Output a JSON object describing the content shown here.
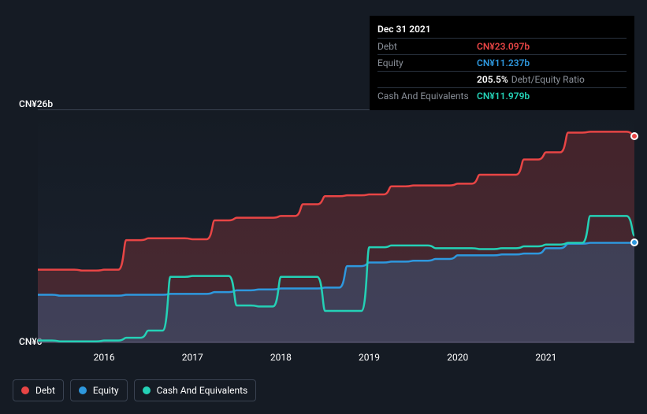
{
  "tooltip": {
    "date": "Dec 31 2021",
    "rows": {
      "debt": {
        "label": "Debt",
        "value": "CN¥23.097b"
      },
      "equity": {
        "label": "Equity",
        "value": "CN¥11.237b"
      },
      "ratio": {
        "value": "205.5%",
        "label": "Debt/Equity Ratio"
      },
      "cash": {
        "label": "Cash And Equivalents",
        "value": "CN¥11.979b"
      }
    }
  },
  "chart": {
    "type": "area",
    "background_color": "#151b24",
    "grid_color": "#3a4352",
    "ylabel_top": "CN¥26b",
    "ylabel_bottom": "CN¥0",
    "ylim": [
      0,
      26
    ],
    "xlim": [
      2015.25,
      2022.0
    ],
    "xticks": [
      2016,
      2017,
      2018,
      2019,
      2020,
      2021
    ],
    "xtick_labels": [
      "2016",
      "2017",
      "2018",
      "2019",
      "2020",
      "2021"
    ],
    "label_fontsize": 12,
    "line_width": 2.5,
    "series": {
      "debt": {
        "label": "Debt",
        "color": "#e84545",
        "fill_opacity": 0.22,
        "data": [
          [
            2015.25,
            8.2
          ],
          [
            2015.5,
            8.2
          ],
          [
            2015.75,
            8.1
          ],
          [
            2016.0,
            8.2
          ],
          [
            2016.25,
            11.5
          ],
          [
            2016.5,
            11.7
          ],
          [
            2016.75,
            11.7
          ],
          [
            2017.0,
            11.6
          ],
          [
            2017.25,
            13.7
          ],
          [
            2017.5,
            14.0
          ],
          [
            2017.75,
            14.0
          ],
          [
            2018.0,
            14.2
          ],
          [
            2018.25,
            15.5
          ],
          [
            2018.5,
            16.4
          ],
          [
            2018.75,
            16.5
          ],
          [
            2019.0,
            16.6
          ],
          [
            2019.25,
            17.5
          ],
          [
            2019.5,
            17.6
          ],
          [
            2019.75,
            17.6
          ],
          [
            2020.0,
            17.8
          ],
          [
            2020.25,
            18.8
          ],
          [
            2020.5,
            18.8
          ],
          [
            2020.75,
            20.5
          ],
          [
            2021.0,
            21.3
          ],
          [
            2021.25,
            23.5
          ],
          [
            2021.5,
            23.6
          ],
          [
            2021.75,
            23.6
          ],
          [
            2022.0,
            23.1
          ]
        ]
      },
      "equity": {
        "label": "Equity",
        "color": "#2e98de",
        "fill_opacity": 0.22,
        "data": [
          [
            2015.25,
            5.4
          ],
          [
            2015.5,
            5.3
          ],
          [
            2015.75,
            5.3
          ],
          [
            2016.0,
            5.3
          ],
          [
            2016.25,
            5.4
          ],
          [
            2016.5,
            5.4
          ],
          [
            2016.75,
            5.5
          ],
          [
            2017.0,
            5.5
          ],
          [
            2017.25,
            5.7
          ],
          [
            2017.5,
            5.9
          ],
          [
            2017.75,
            6.0
          ],
          [
            2018.0,
            6.1
          ],
          [
            2018.25,
            6.1
          ],
          [
            2018.5,
            6.2
          ],
          [
            2018.75,
            8.6
          ],
          [
            2019.0,
            9.0
          ],
          [
            2019.25,
            9.1
          ],
          [
            2019.5,
            9.2
          ],
          [
            2019.75,
            9.4
          ],
          [
            2020.0,
            9.8
          ],
          [
            2020.25,
            9.8
          ],
          [
            2020.5,
            9.9
          ],
          [
            2020.75,
            10.0
          ],
          [
            2021.0,
            10.6
          ],
          [
            2021.25,
            11.1
          ],
          [
            2021.5,
            11.2
          ],
          [
            2021.75,
            11.2
          ],
          [
            2022.0,
            11.2
          ]
        ]
      },
      "cash": {
        "label": "Cash And Equivalents",
        "color": "#24d1b6",
        "fill_opacity": 0.0,
        "data": [
          [
            2015.25,
            0.3
          ],
          [
            2015.5,
            0.2
          ],
          [
            2015.75,
            0.2
          ],
          [
            2016.0,
            0.3
          ],
          [
            2016.25,
            0.6
          ],
          [
            2016.5,
            1.4
          ],
          [
            2016.75,
            7.4
          ],
          [
            2017.0,
            7.5
          ],
          [
            2017.25,
            7.5
          ],
          [
            2017.5,
            4.2
          ],
          [
            2017.75,
            4.1
          ],
          [
            2018.0,
            7.4
          ],
          [
            2018.25,
            7.4
          ],
          [
            2018.5,
            3.6
          ],
          [
            2018.75,
            3.6
          ],
          [
            2019.0,
            10.7
          ],
          [
            2019.25,
            10.9
          ],
          [
            2019.5,
            10.9
          ],
          [
            2019.75,
            10.6
          ],
          [
            2020.0,
            10.6
          ],
          [
            2020.25,
            10.5
          ],
          [
            2020.5,
            10.6
          ],
          [
            2020.75,
            10.8
          ],
          [
            2021.0,
            11.0
          ],
          [
            2021.25,
            11.2
          ],
          [
            2021.5,
            14.2
          ],
          [
            2021.75,
            14.2
          ],
          [
            2022.0,
            12.0
          ]
        ]
      }
    },
    "markers": [
      {
        "series": "debt",
        "x": 2022.0,
        "y": 23.1
      },
      {
        "series": "equity",
        "x": 2022.0,
        "y": 11.2
      }
    ]
  },
  "legend": {
    "items": [
      {
        "key": "debt",
        "label": "Debt"
      },
      {
        "key": "equity",
        "label": "Equity"
      },
      {
        "key": "cash",
        "label": "Cash And Equivalents"
      }
    ]
  }
}
